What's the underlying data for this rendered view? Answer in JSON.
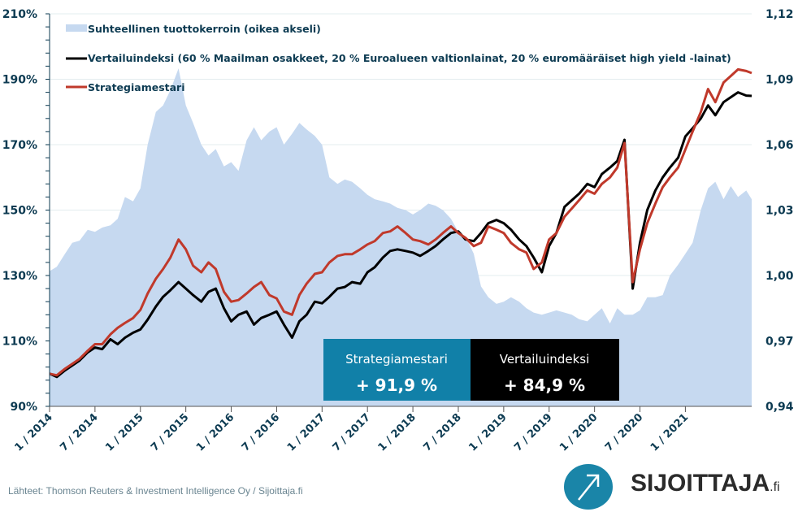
{
  "chart_data": {
    "type": "line",
    "title": "",
    "xlabel": "",
    "ylabel": "",
    "ylim": [
      90,
      210
    ],
    "y2lim": [
      0.94,
      1.12
    ],
    "grid": true,
    "legend_position": "top-left",
    "y_ticks": [
      "210%",
      "190%",
      "170%",
      "150%",
      "130%",
      "110%",
      "90%"
    ],
    "y_tick_values": [
      210,
      190,
      170,
      150,
      130,
      110,
      90
    ],
    "y2_ticks": [
      "1,12",
      "1,09",
      "1,06",
      "1,03",
      "1,00",
      "0,97",
      "0,94"
    ],
    "y2_tick_values": [
      1.12,
      1.09,
      1.06,
      1.03,
      1.0,
      0.97,
      0.94
    ],
    "x_ticks": [
      "1 / 2014",
      "7 / 2014",
      "1 / 2015",
      "7 / 2015",
      "1 / 2016",
      "7 / 2016",
      "1 / 2017",
      "7 / 2017",
      "1 / 2018",
      "7 / 2018",
      "1 / 2019",
      "7 / 2019",
      "1 / 2020",
      "7 / 2020",
      "1 / 2021"
    ],
    "x_tick_values": [
      2014.0,
      2014.5,
      2015.0,
      2015.5,
      2016.0,
      2016.5,
      2017.0,
      2017.5,
      2018.0,
      2018.5,
      2019.0,
      2019.5,
      2020.0,
      2020.5,
      2021.0
    ],
    "xlim": [
      2014.0,
      2021.73
    ],
    "x": [
      2014.0,
      2014.08,
      2014.17,
      2014.25,
      2014.33,
      2014.42,
      2014.5,
      2014.58,
      2014.67,
      2014.75,
      2014.83,
      2014.92,
      2015.0,
      2015.08,
      2015.17,
      2015.25,
      2015.33,
      2015.42,
      2015.5,
      2015.58,
      2015.67,
      2015.75,
      2015.83,
      2015.92,
      2016.0,
      2016.08,
      2016.17,
      2016.25,
      2016.33,
      2016.42,
      2016.5,
      2016.58,
      2016.67,
      2016.75,
      2016.83,
      2016.92,
      2017.0,
      2017.08,
      2017.17,
      2017.25,
      2017.33,
      2017.42,
      2017.5,
      2017.58,
      2017.67,
      2017.75,
      2017.83,
      2017.92,
      2018.0,
      2018.08,
      2018.17,
      2018.25,
      2018.33,
      2018.42,
      2018.5,
      2018.58,
      2018.67,
      2018.75,
      2018.83,
      2018.92,
      2019.0,
      2019.08,
      2019.17,
      2019.25,
      2019.33,
      2019.42,
      2019.5,
      2019.58,
      2019.67,
      2019.75,
      2019.83,
      2019.92,
      2020.0,
      2020.08,
      2020.17,
      2020.25,
      2020.33,
      2020.42,
      2020.5,
      2020.58,
      2020.67,
      2020.75,
      2020.83,
      2020.92,
      2021.0,
      2021.08,
      2021.17,
      2021.25,
      2021.33,
      2021.42,
      2021.5,
      2021.58,
      2021.67,
      2021.73
    ],
    "series": [
      {
        "name": "Suhteellinen tuottokerroin (oikea akseli)",
        "type": "area",
        "axis": "right",
        "color": "#c6d9f0",
        "values": [
          1.002,
          1.004,
          1.01,
          1.015,
          1.016,
          1.021,
          1.02,
          1.022,
          1.023,
          1.026,
          1.036,
          1.034,
          1.04,
          1.06,
          1.075,
          1.078,
          1.085,
          1.095,
          1.078,
          1.07,
          1.06,
          1.055,
          1.058,
          1.05,
          1.052,
          1.048,
          1.062,
          1.068,
          1.062,
          1.066,
          1.068,
          1.06,
          1.065,
          1.07,
          1.067,
          1.064,
          1.06,
          1.045,
          1.042,
          1.044,
          1.043,
          1.04,
          1.037,
          1.035,
          1.034,
          1.033,
          1.031,
          1.03,
          1.028,
          1.03,
          1.033,
          1.032,
          1.03,
          1.026,
          1.02,
          1.018,
          1.01,
          0.995,
          0.99,
          0.987,
          0.988,
          0.99,
          0.988,
          0.985,
          0.983,
          0.982,
          0.983,
          0.984,
          0.983,
          0.982,
          0.98,
          0.979,
          0.982,
          0.985,
          0.978,
          0.985,
          0.982,
          0.982,
          0.984,
          0.99,
          0.99,
          0.991,
          1.0,
          1.005,
          1.01,
          1.015,
          1.03,
          1.04,
          1.043,
          1.035,
          1.041,
          1.036,
          1.039,
          1.035
        ]
      },
      {
        "name": "Vertailuindeksi (60 % Maailman osakkeet, 20 % Euroalueen valtionlainat, 20 % euromääräiset high yield -lainat)",
        "type": "line",
        "axis": "left",
        "color": "#000000",
        "values": [
          100.0,
          99.0,
          101.0,
          102.5,
          104.0,
          106.5,
          108.0,
          107.5,
          110.5,
          109.0,
          111.0,
          112.5,
          113.5,
          116.5,
          120.5,
          123.5,
          125.5,
          128.0,
          126.0,
          124.0,
          122.0,
          125.0,
          126.0,
          120.0,
          116.0,
          118.0,
          119.0,
          115.0,
          117.0,
          118.0,
          119.0,
          115.0,
          111.0,
          116.0,
          118.0,
          122.0,
          121.5,
          123.5,
          126.0,
          126.5,
          128.0,
          127.5,
          131.0,
          132.5,
          135.5,
          137.5,
          138.0,
          137.5,
          137.0,
          136.0,
          137.5,
          139.0,
          141.0,
          143.0,
          143.5,
          141.0,
          140.5,
          143.0,
          146.0,
          147.0,
          146.0,
          144.0,
          141.0,
          139.0,
          135.5,
          131.0,
          139.0,
          143.0,
          151.0,
          153.0,
          155.0,
          158.0,
          157.0,
          161.0,
          163.0,
          165.0,
          171.5,
          126.0,
          140.0,
          150.0,
          156.0,
          160.0,
          163.0,
          166.0,
          172.5,
          175.0,
          178.0,
          182.0,
          179.0,
          183.0,
          184.5,
          186.0,
          185.0,
          184.9
        ]
      },
      {
        "name": "Strategiamestari",
        "type": "line",
        "axis": "left",
        "color": "#c0392b",
        "values": [
          100.0,
          99.5,
          101.5,
          103.0,
          104.5,
          107.0,
          109.0,
          109.0,
          112.0,
          114.0,
          115.5,
          117.0,
          119.5,
          124.5,
          129.0,
          132.0,
          135.5,
          141.0,
          138.0,
          133.0,
          131.0,
          134.0,
          132.0,
          125.0,
          122.0,
          122.5,
          124.5,
          126.5,
          128.0,
          124.0,
          123.0,
          119.0,
          118.0,
          124.0,
          127.5,
          130.5,
          131.0,
          134.0,
          136.0,
          136.5,
          136.5,
          138.0,
          139.5,
          140.5,
          143.0,
          143.5,
          145.0,
          143.0,
          141.0,
          140.5,
          139.5,
          141.0,
          143.0,
          145.0,
          143.0,
          141.5,
          139.0,
          140.0,
          145.0,
          144.0,
          143.0,
          140.0,
          138.0,
          137.0,
          132.0,
          134.0,
          141.0,
          143.0,
          148.0,
          150.5,
          153.0,
          156.0,
          155.0,
          158.0,
          160.0,
          163.0,
          170.5,
          128.0,
          138.0,
          146.0,
          152.0,
          157.0,
          160.0,
          163.0,
          168.5,
          174.0,
          180.0,
          187.0,
          183.0,
          189.0,
          191.0,
          193.0,
          192.5,
          191.9
        ]
      }
    ],
    "annotations": [
      {
        "label": "Strategiamestari",
        "value": "+ 91,9 %",
        "color": "#1180a8"
      },
      {
        "label": "Vertailuindeksi",
        "value": "+ 84,9 %",
        "color": "#000000"
      }
    ]
  },
  "legend": [
    {
      "label": "Suhteellinen tuottokerroin (oikea akseli)",
      "color": "#c6d9f0",
      "kind": "area"
    },
    {
      "label": "Vertailuindeksi (60 % Maailman osakkeet, 20 % Euroalueen valtionlainat, 20 % euromääräiset high yield -lainat)",
      "color": "#000000",
      "kind": "line"
    },
    {
      "label": "Strategiamestari",
      "color": "#c0392b",
      "kind": "line"
    }
  ],
  "footer": {
    "source": "Lähteet: Thomson Reuters & Investment Intelligence Oy / Sijoittaja.fi",
    "logo_text": "SIJOITTAJA",
    "logo_suffix": ".fi",
    "logo_icon": "arrow-up-right-icon"
  },
  "colors": {
    "axis_text": "#0d3b52",
    "grid": "#e3ecef",
    "brand_blue": "#1180a8"
  }
}
